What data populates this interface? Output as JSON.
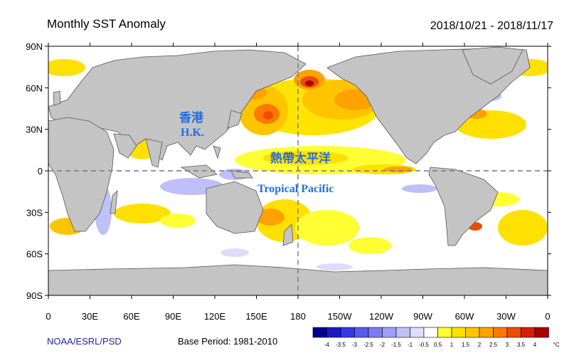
{
  "header": {
    "title": "Monthly SST Anomaly",
    "date_range": "2018/10/21 - 2018/11/17"
  },
  "footer": {
    "credit": "NOAA/ESRL/PSD",
    "base_period": "Base Period: 1981-2010"
  },
  "axes": {
    "lat_labels": [
      "90N",
      "60N",
      "30N",
      "0",
      "30S",
      "60S",
      "90S"
    ],
    "lon_labels": [
      "0",
      "30E",
      "60E",
      "90E",
      "120E",
      "150E",
      "180",
      "150W",
      "120W",
      "90W",
      "60W",
      "30W",
      "0"
    ]
  },
  "annotations": {
    "hk_zh": "香港",
    "hk_en": "H.K.",
    "pacific_zh": "熱帶太平洋",
    "pacific_en": "Tropical Pacific"
  },
  "colorbar": {
    "labels": [
      "-4",
      "-3.5",
      "-3",
      "-2.5",
      "-2",
      "-1.5",
      "-1",
      "-0.5",
      "0.5",
      "1",
      "1.5",
      "2",
      "2.5",
      "3",
      "3.5",
      "4"
    ],
    "unit": "°C",
    "colors": [
      "#00008f",
      "#1a1ac8",
      "#3737e6",
      "#5a5aee",
      "#7c7cf2",
      "#9e9ef6",
      "#bfbffa",
      "#dcdcfc",
      "#ffffff",
      "#ffff33",
      "#ffe000",
      "#ffc400",
      "#ffa200",
      "#ff7800",
      "#ee4c00",
      "#d42000",
      "#aa0000"
    ]
  },
  "colors": {
    "land": "#c4c4c4",
    "coast": "#555555",
    "annotation": "#1e6fe6"
  }
}
